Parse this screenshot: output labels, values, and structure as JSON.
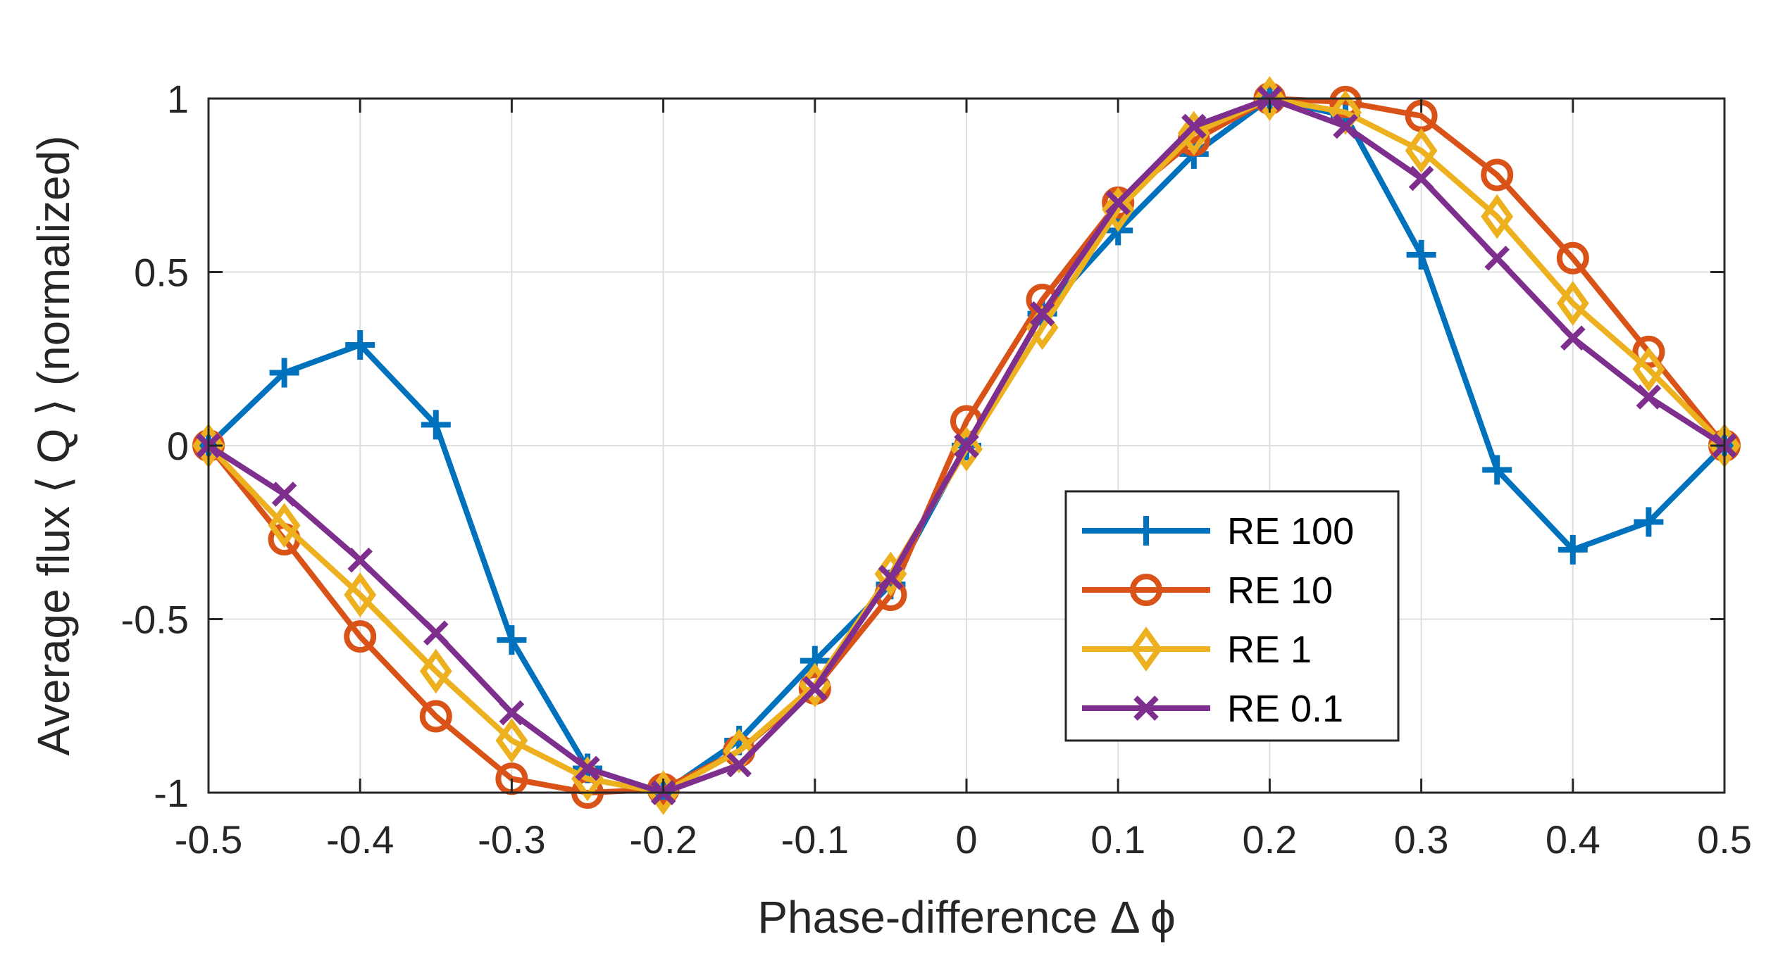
{
  "chart_data": {
    "type": "line",
    "title": "",
    "xlabel": "Phase-difference Δ ϕ",
    "ylabel": "Average flux ⟨ Q ⟩ (normalized)",
    "xlim": [
      -0.5,
      0.5
    ],
    "ylim": [
      -1,
      1
    ],
    "grid": true,
    "legend_position": "right-center",
    "x_ticks": [
      -0.5,
      -0.4,
      -0.3,
      -0.2,
      -0.1,
      0,
      0.1,
      0.2,
      0.3,
      0.4,
      0.5
    ],
    "x_tick_labels": [
      "-0.5",
      "-0.4",
      "-0.3",
      "-0.2",
      "-0.1",
      "0",
      "0.1",
      "0.2",
      "0.3",
      "0.4",
      "0.5"
    ],
    "y_ticks": [
      -1,
      -0.5,
      0,
      0.5,
      1
    ],
    "y_tick_labels": [
      "-1",
      "-0.5",
      "0",
      "0.5",
      "1"
    ],
    "x": [
      -0.5,
      -0.45,
      -0.4,
      -0.35,
      -0.3,
      -0.25,
      -0.2,
      -0.15,
      -0.1,
      -0.05,
      0,
      0.05,
      0.1,
      0.15,
      0.2,
      0.25,
      0.3,
      0.35,
      0.4,
      0.45,
      0.5
    ],
    "series": [
      {
        "name": "RE 100",
        "color": "#0072BD",
        "marker": "plus",
        "values": [
          0,
          0.21,
          0.29,
          0.06,
          -0.56,
          -0.93,
          -1.0,
          -0.85,
          -0.62,
          -0.4,
          0,
          0.38,
          0.62,
          0.84,
          1.0,
          0.95,
          0.55,
          -0.07,
          -0.3,
          -0.22,
          0
        ]
      },
      {
        "name": "RE 10",
        "color": "#D95319",
        "marker": "circle",
        "values": [
          0,
          -0.27,
          -0.55,
          -0.78,
          -0.96,
          -1.0,
          -0.99,
          -0.88,
          -0.7,
          -0.43,
          0.07,
          0.42,
          0.7,
          0.88,
          1.0,
          0.99,
          0.95,
          0.78,
          0.54,
          0.27,
          0
        ]
      },
      {
        "name": "RE 1",
        "color": "#EDB120",
        "marker": "diamond",
        "values": [
          0,
          -0.23,
          -0.43,
          -0.65,
          -0.85,
          -0.96,
          -1.0,
          -0.88,
          -0.69,
          -0.37,
          -0.01,
          0.34,
          0.68,
          0.9,
          1.0,
          0.96,
          0.85,
          0.66,
          0.41,
          0.22,
          0
        ]
      },
      {
        "name": "RE 0.1",
        "color": "#7E2F8E",
        "marker": "x",
        "values": [
          0,
          -0.14,
          -0.33,
          -0.54,
          -0.77,
          -0.93,
          -1.0,
          -0.92,
          -0.7,
          -0.38,
          0.0,
          0.38,
          0.7,
          0.92,
          1.0,
          0.92,
          0.77,
          0.54,
          0.31,
          0.14,
          0
        ]
      }
    ]
  }
}
